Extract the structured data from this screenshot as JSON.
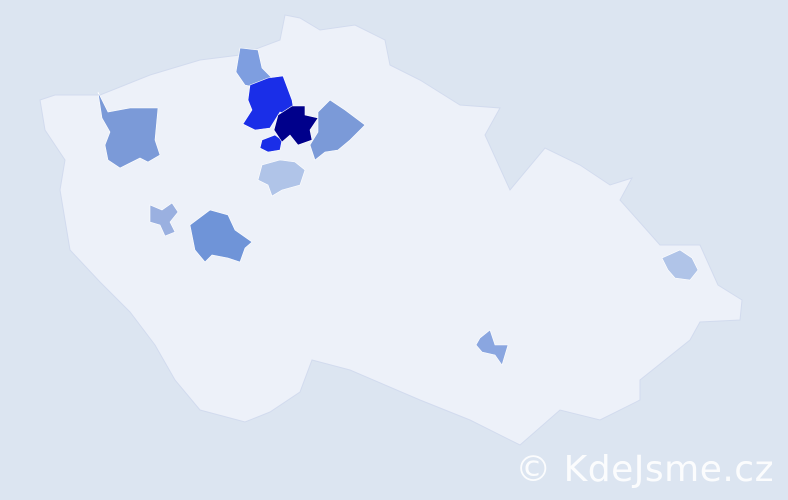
{
  "map": {
    "background_color": "#dce5f1",
    "land_color": "#edf1f9",
    "border_color": "#d2dbee",
    "regions": [
      {
        "name": "region-northwest",
        "color": "#7b9ad8"
      },
      {
        "name": "region-north-light",
        "color": "#7e9ee0"
      },
      {
        "name": "region-bright-blue",
        "color": "#1a2ee8"
      },
      {
        "name": "region-bright-blue-south",
        "color": "#1a2ee8"
      },
      {
        "name": "region-darkest",
        "color": "#00008b"
      },
      {
        "name": "region-northeast-of-capital",
        "color": "#7b9ad8"
      },
      {
        "name": "region-central-pale",
        "color": "#b0c4e8"
      },
      {
        "name": "region-west-small",
        "color": "#9ab0e0"
      },
      {
        "name": "region-south-central",
        "color": "#6f94d8"
      },
      {
        "name": "region-east",
        "color": "#b0c4e8"
      },
      {
        "name": "region-southeast",
        "color": "#8aa6e0"
      }
    ]
  },
  "watermark": "© KdeJsme.cz"
}
